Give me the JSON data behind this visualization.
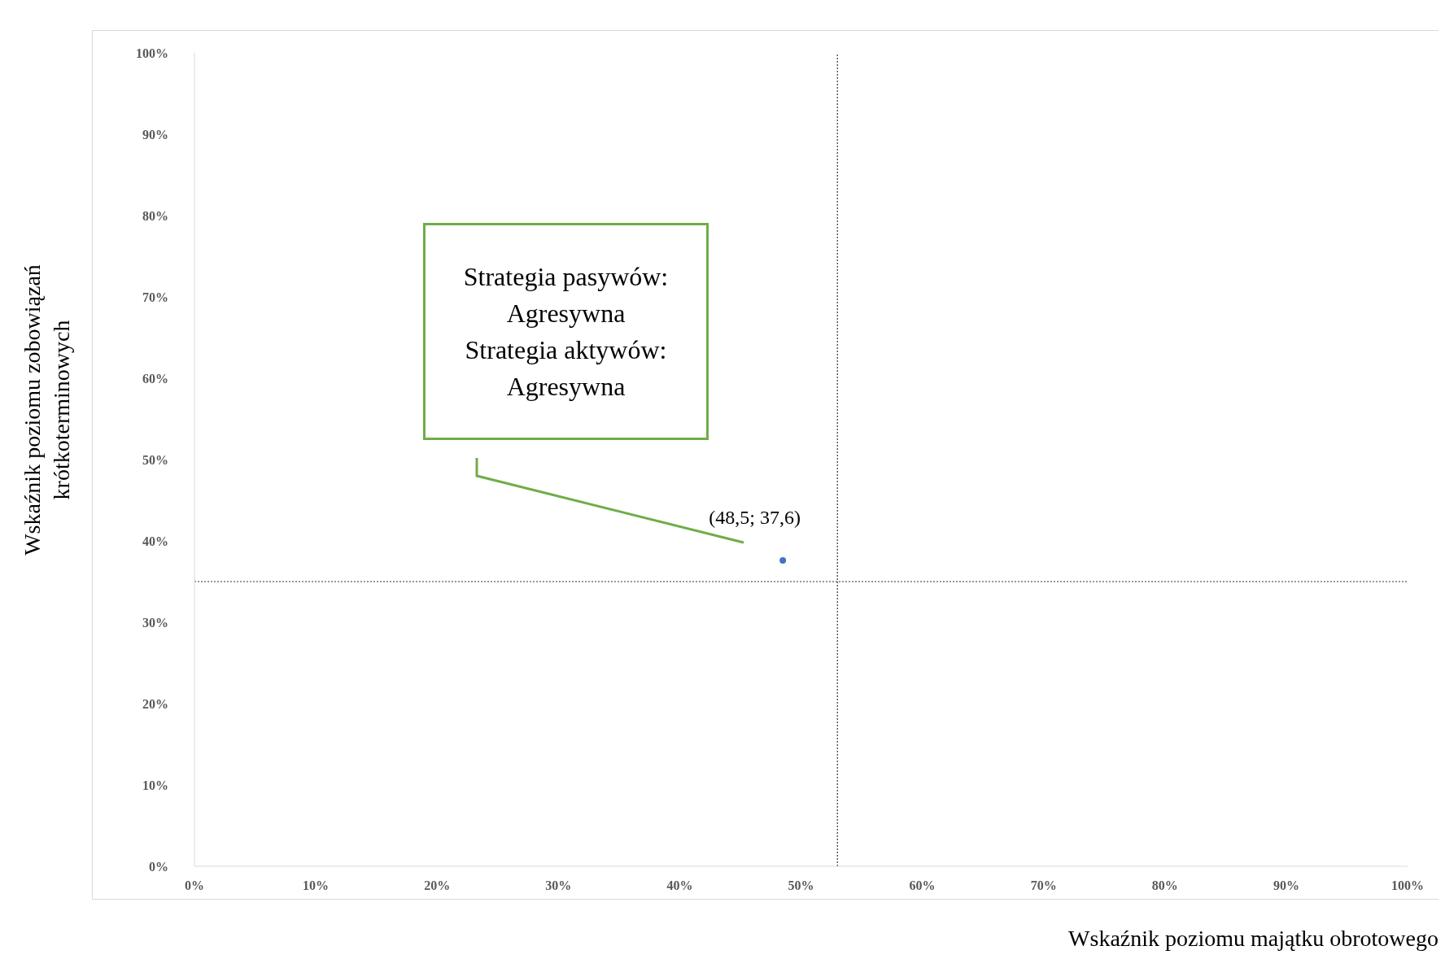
{
  "chart_data": {
    "type": "scatter",
    "xlabel": "Wskaźnik poziomu majątku obrotowego",
    "ylabel": "Wskaźnik poziomu zobowiązań\nkrótkoterminowych",
    "x": [
      48.5
    ],
    "series": [
      {
        "color": "#4472c4",
        "values": [
          37.6
        ],
        "value_labels": [
          "(48,5; 37,6)"
        ]
      }
    ],
    "xlim": [
      0,
      100
    ],
    "ylim": [
      0,
      100
    ],
    "xticks": [
      {
        "value": 0,
        "label": "0%"
      },
      {
        "value": 10,
        "label": "10%"
      },
      {
        "value": 20,
        "label": "20%"
      },
      {
        "value": 30,
        "label": "30%"
      },
      {
        "value": 40,
        "label": "40%"
      },
      {
        "value": 50,
        "label": "50%"
      },
      {
        "value": 60,
        "label": "60%"
      },
      {
        "value": 70,
        "label": "70%"
      },
      {
        "value": 80,
        "label": "80%"
      },
      {
        "value": 90,
        "label": "90%"
      },
      {
        "value": 100,
        "label": "100%"
      }
    ],
    "yticks": [
      {
        "value": 0,
        "label": "0%"
      },
      {
        "value": 10,
        "label": "10%"
      },
      {
        "value": 20,
        "label": "20%"
      },
      {
        "value": 30,
        "label": "30%"
      },
      {
        "value": 40,
        "label": "40%"
      },
      {
        "value": 50,
        "label": "50%"
      },
      {
        "value": 60,
        "label": "60%"
      },
      {
        "value": 70,
        "label": "70%"
      },
      {
        "value": 80,
        "label": "80%"
      },
      {
        "value": 90,
        "label": "90%"
      },
      {
        "value": 100,
        "label": "100%"
      }
    ],
    "ref_lines": [
      {
        "axis": "x",
        "value": 53,
        "color": "#333333",
        "line_style": "dotted"
      },
      {
        "axis": "y",
        "value": 35,
        "color": "#333333",
        "line_style": "dotted"
      }
    ],
    "annotations": [
      "Strategia pasywów:\nAgresywna\nStrategia aktywów:\nAgresywna"
    ],
    "grid": false,
    "marker": "circle"
  }
}
